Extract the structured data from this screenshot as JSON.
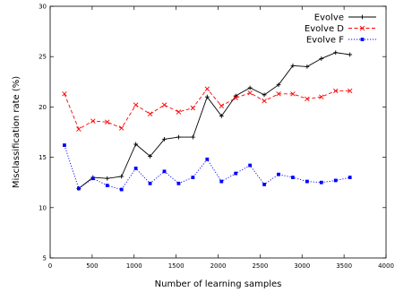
{
  "chart_data": {
    "type": "line",
    "title": "",
    "xlabel": "Number of learning samples",
    "ylabel": "Misclassification rate (%)",
    "xlim": [
      0,
      4000
    ],
    "ylim": [
      5,
      30
    ],
    "xticks": [
      0,
      500,
      1000,
      1500,
      2000,
      2500,
      3000,
      3500,
      4000
    ],
    "yticks": [
      5,
      10,
      15,
      20,
      25,
      30
    ],
    "grid": false,
    "legend_position": "top-right",
    "series": [
      {
        "name": "Evolve",
        "color": "#000000",
        "dash": "solid",
        "marker": "plus",
        "x": [
          170,
          340,
          510,
          680,
          850,
          1020,
          1190,
          1360,
          1530,
          1700,
          1870,
          2040,
          2210,
          2380,
          2550,
          2720,
          2890,
          3060,
          3230,
          3400,
          3570
        ],
        "y": [
          null,
          11.9,
          13.0,
          12.9,
          13.1,
          16.3,
          15.1,
          16.8,
          17.0,
          17.0,
          21.0,
          19.1,
          21.1,
          21.9,
          21.2,
          22.2,
          24.1,
          24.0,
          24.8,
          25.4,
          25.2
        ]
      },
      {
        "name": "Evolve D",
        "color": "#ff0000",
        "dash": "dashed",
        "marker": "x",
        "x": [
          170,
          340,
          510,
          680,
          850,
          1020,
          1190,
          1360,
          1530,
          1700,
          1870,
          2040,
          2210,
          2380,
          2550,
          2720,
          2890,
          3060,
          3230,
          3400,
          3570
        ],
        "y": [
          21.3,
          17.8,
          18.6,
          18.5,
          17.9,
          20.2,
          19.3,
          20.2,
          19.5,
          19.9,
          21.8,
          20.1,
          20.9,
          21.4,
          20.6,
          21.3,
          21.3,
          20.8,
          21.0,
          21.6,
          21.6
        ]
      },
      {
        "name": "Evolve F",
        "color": "#0000ff",
        "dash": "dotted",
        "marker": "square",
        "x": [
          170,
          340,
          510,
          680,
          850,
          1020,
          1190,
          1360,
          1530,
          1700,
          1870,
          2040,
          2210,
          2380,
          2550,
          2720,
          2890,
          3060,
          3230,
          3400,
          3570
        ],
        "y": [
          16.2,
          11.9,
          12.9,
          12.2,
          11.8,
          13.9,
          12.4,
          13.6,
          12.4,
          13.0,
          14.8,
          12.6,
          13.4,
          14.2,
          12.3,
          13.3,
          13.0,
          12.6,
          12.5,
          12.7,
          13.0
        ]
      }
    ]
  }
}
